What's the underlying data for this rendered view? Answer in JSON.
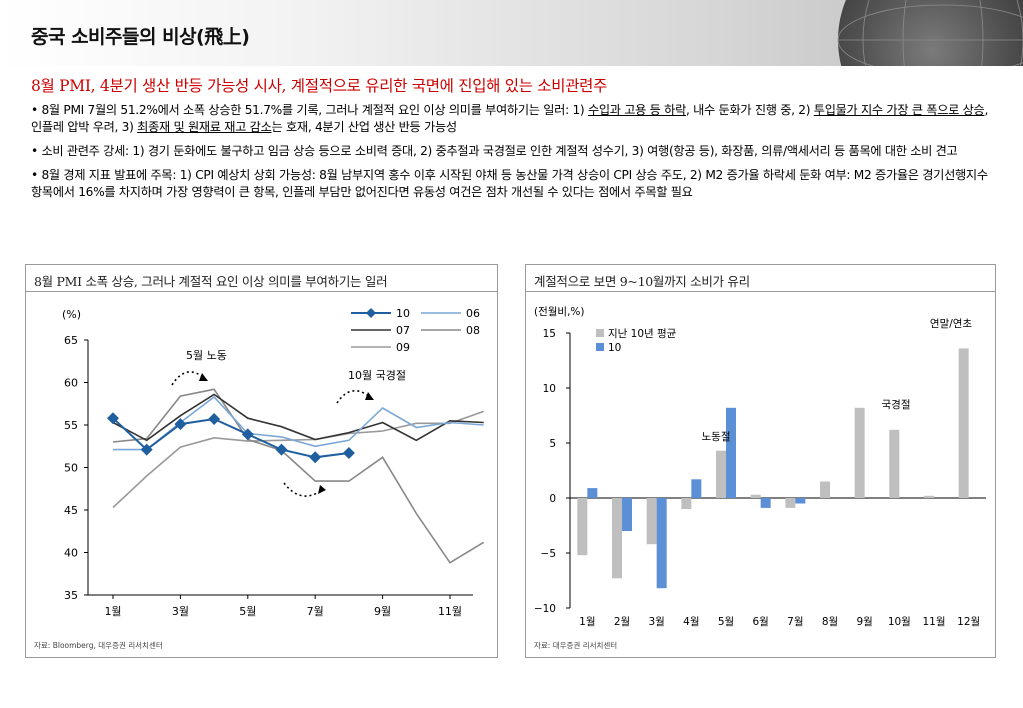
{
  "header": {
    "title": "중국 소비주들의 비상(飛上)"
  },
  "subtitle": "8월 PMI, 4분기 생산 반등 가능성 시사, 계절적으로 유리한 국면에 진입해 있는 소비관련주",
  "bullets": [
    {
      "p1": "• 8월 PMI 7월의 51.2%에서 소폭 상승한 51.7%를 기록, 그러나 계절적 요인 이상 의미를 부여하기는 일러: 1) ",
      "u1": "수입과 고용 등 하락",
      "p2": ", 내수 둔화가 진행 중, 2) ",
      "u2": "투입물가 지수 가장 큰 폭으로 상승",
      "p3": ", 인플레 압박 우려, 3) ",
      "u3": "최종재 및 원재료 재고 감소",
      "p4": "는 호재, 4분기 산업 생산 반등 가능성"
    },
    {
      "text": "• 소비 관련주 강세: 1) 경기 둔화에도 불구하고 임금 상승 등으로 소비력 증대, 2) 중추절과 국경절로 인한 계절적 성수기, 3) 여행(항공 등), 화장품, 의류/액세서리 등 품목에 대한 소비 견고"
    },
    {
      "text": "• 8월 경제 지표 발표에 주목: 1) CPI 예상치 상회 가능성: 8월 남부지역 홍수 이후 시작된 야채 등 농산물 가격 상승이 CPI 상승 주도, 2) M2 증가율 하락세 둔화 여부: M2 증가율은 경기선행지수 항목에서 16%를 차지하며 가장 영향력이 큰 항목, 인플레 부담만 없어진다면 유동성 여건은 점차 개선될 수 있다는 점에서 주목할 필요"
    }
  ],
  "chart_data": [
    {
      "type": "line",
      "panel_title": "8월 PMI 소폭 상승, 그러나 계절적 요인 이상 의미를 부여하기는 일러",
      "ylabel": "(%)",
      "ylim": [
        35,
        65
      ],
      "yticks": [
        35,
        40,
        45,
        50,
        55,
        60,
        65
      ],
      "x": [
        1,
        2,
        3,
        4,
        5,
        6,
        7,
        8,
        9,
        10,
        11,
        12
      ],
      "xtick_labels": [
        "1월",
        "3월",
        "5월",
        "7월",
        "9월",
        "11월"
      ],
      "xtick_positions": [
        1,
        3,
        5,
        7,
        9,
        11
      ],
      "series": [
        {
          "name": "10",
          "color": "#1f5fa0",
          "values": [
            55.8,
            52.1,
            55.1,
            55.7,
            53.9,
            52.1,
            51.2,
            51.7,
            null,
            null,
            null,
            null
          ]
        },
        {
          "name": "06",
          "color": "#7aa7d6",
          "values": [
            52.1,
            52.1,
            55.3,
            58.3,
            54.0,
            53.6,
            52.5,
            53.2,
            57.0,
            54.7,
            55.3,
            55.0
          ]
        },
        {
          "name": "07",
          "color": "#333333",
          "values": [
            55.3,
            53.2,
            56.1,
            58.6,
            55.8,
            54.8,
            53.3,
            54.1,
            55.3,
            53.2,
            55.5,
            55.3
          ]
        },
        {
          "name": "08",
          "color": "#888888",
          "values": [
            53.0,
            53.4,
            58.4,
            59.2,
            53.3,
            52.0,
            48.4,
            48.4,
            51.2,
            44.6,
            38.8,
            41.2
          ]
        },
        {
          "name": "09",
          "color": "#999999",
          "values": [
            45.3,
            49.0,
            52.4,
            53.5,
            53.1,
            53.2,
            53.3,
            54.0,
            54.3,
            55.2,
            55.2,
            56.6
          ]
        }
      ],
      "annotations": [
        "5월 노동",
        "10월 국경절"
      ],
      "source": "자료: Bloomberg, 대우증권 리서치센터"
    },
    {
      "type": "bar",
      "panel_title": "계절적으로 보면 9~10월까지 소비가 유리",
      "ylabel": "(전월비,%)",
      "ylim": [
        -10,
        15
      ],
      "yticks": [
        -10,
        -5,
        0,
        5,
        10,
        15
      ],
      "ytick_labels": [
        "−10",
        "−5",
        "0",
        "5",
        "10",
        "15"
      ],
      "categories": [
        "1월",
        "2월",
        "3월",
        "4월",
        "5월",
        "6월",
        "7월",
        "8월",
        "9월",
        "10월",
        "11월",
        "12월"
      ],
      "series": [
        {
          "name": "지난 10년 평균",
          "color": "#bfbfbf",
          "values": [
            -5.2,
            -7.3,
            -4.2,
            -1.0,
            4.3,
            0.3,
            -0.9,
            1.5,
            8.2,
            6.2,
            0.2,
            13.6
          ]
        },
        {
          "name": "10",
          "color": "#5b8fd6",
          "values": [
            0.9,
            -3.0,
            -8.2,
            1.7,
            8.2,
            -0.9,
            -0.5,
            null,
            null,
            null,
            null,
            null
          ]
        }
      ],
      "annotations": [
        "노동절",
        "국경절",
        "연말/연초"
      ],
      "source": "자료: 대우증권 리서치센터"
    }
  ]
}
